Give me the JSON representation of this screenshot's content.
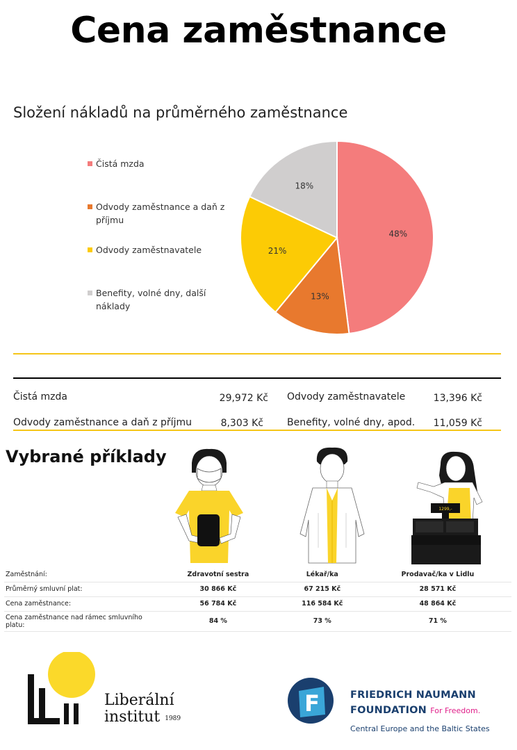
{
  "title": "Cena zaměstnance",
  "chart_data": {
    "type": "pie",
    "title": "Složení nákladů na průměrného zaměstnance",
    "legend_position": "left",
    "slices": [
      {
        "label": "Čistá mzda",
        "value": 48,
        "display": "48%",
        "color": "#f47c7c"
      },
      {
        "label": "Odvody zaměstnance a daň z příjmu",
        "value": 13,
        "display": "13%",
        "color": "#e8792e"
      },
      {
        "label": "Odvody zaměstnavatele",
        "value": 21,
        "display": "21%",
        "color": "#fccb05"
      },
      {
        "label": "Benefity, volné dny, další náklady",
        "value": 18,
        "display": "18%",
        "color": "#d0cece"
      }
    ]
  },
  "costs": {
    "cista_mzda": {
      "label": "Čistá mzda",
      "value": "29,972 Kč"
    },
    "odvody_zamestnance": {
      "label": "Odvody zaměstnance a daň z příjmu",
      "value": "8,303 Kč"
    },
    "odvody_zamestnavatele": {
      "label": "Odvody zaměstnavatele",
      "value": "13,396 Kč"
    },
    "benefity": {
      "label": "Benefity, volné dny, apod.",
      "value": "11,059 Kč"
    }
  },
  "examples": {
    "title": "Vybrané příklady",
    "row_labels": {
      "job": "Zaměstnání:",
      "salary": "Průměrný smluvní plat:",
      "cost": "Cena zaměstnance:",
      "over": "Cena zaměstnance nad rámec smluvního platu:"
    },
    "columns": [
      {
        "job": "Zdravotní sestra",
        "salary": "30 866 Kč",
        "cost": "56 784 Kč",
        "over": "84 %"
      },
      {
        "job": "Lékař/ka",
        "salary": "67 215 Kč",
        "cost": "116 584 Kč",
        "over": "73 %"
      },
      {
        "job": "Prodavač/ka v Lidlu",
        "salary": "28 571 Kč",
        "cost": "48 864 Kč",
        "over": "71 %"
      }
    ],
    "register_display": "1299,-"
  },
  "logos": {
    "liberalni": {
      "line1": "Liberální",
      "line2": "institut",
      "year": "1989"
    },
    "fnf": {
      "line1": "FRIEDRICH NAUMANN",
      "line2": "FOUNDATION",
      "tagline": "For Freedom.",
      "sub": "Central Europe and the Baltic States",
      "letter": "F"
    }
  }
}
